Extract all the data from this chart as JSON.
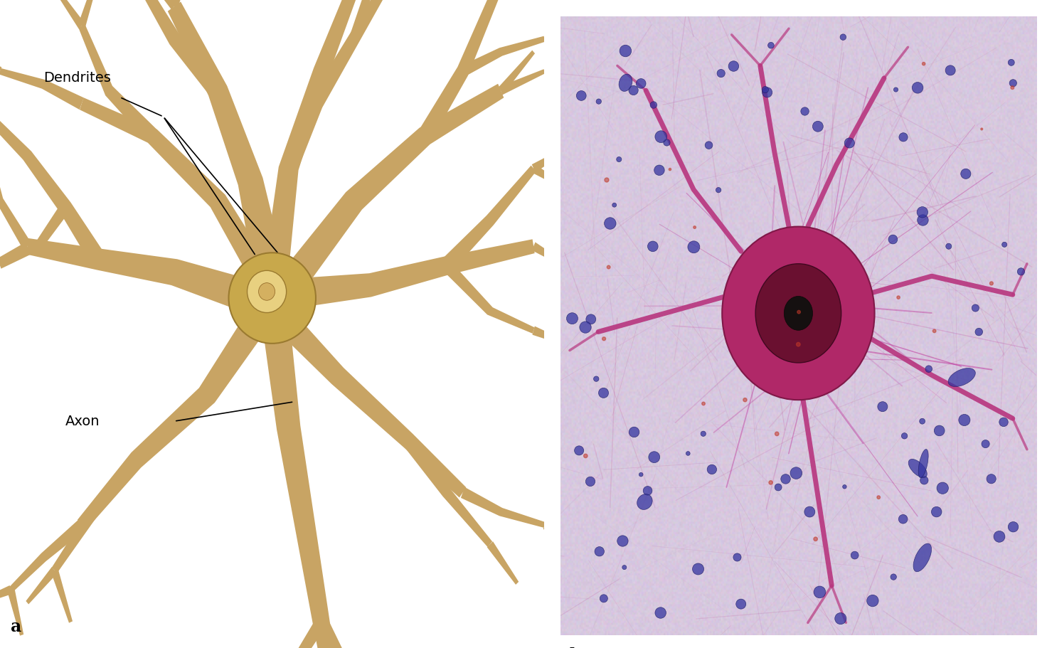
{
  "bg_color": "#ffffff",
  "label_a": "a",
  "label_b": "b",
  "label_dendrites": "Dendrites",
  "label_axon": "Axon",
  "neuron_body_color": "#c8a84b",
  "neuron_body_dark": "#9a7a30",
  "neuron_highlight": "#e8d080",
  "dendrite_color": "#c8a464",
  "axon_color": "#b89040",
  "label_fontsize": 14,
  "panel_label_fontsize": 17
}
